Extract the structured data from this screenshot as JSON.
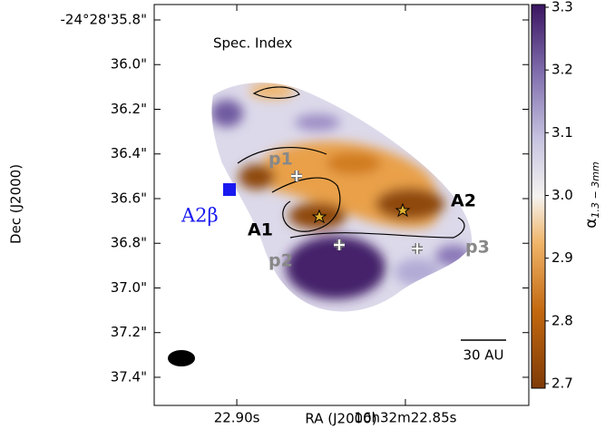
{
  "chart_data": {
    "type": "image",
    "title": "Spec. Index",
    "x_label": "RA (J2000)",
    "y_label": "Dec (J2000)",
    "xlim": [
      22.9245,
      22.8134
    ],
    "xticks": [
      {
        "value": 22.9,
        "label": "22.90s"
      },
      {
        "value": 22.85,
        "label": "16h32m22.85s"
      }
    ],
    "ylim": [
      35.731,
      37.526
    ],
    "yticks": [
      {
        "value": 35.8,
        "label": "-24°28'35.8\""
      },
      {
        "value": 36.0,
        "label": "36.0\""
      },
      {
        "value": 36.2,
        "label": "36.2\""
      },
      {
        "value": 36.4,
        "label": "36.4\""
      },
      {
        "value": 36.6,
        "label": "36.6\""
      },
      {
        "value": 36.8,
        "label": "36.8\""
      },
      {
        "value": 37.0,
        "label": "37.0\""
      },
      {
        "value": 37.2,
        "label": "37.2\""
      },
      {
        "value": 37.4,
        "label": "37.4\""
      }
    ],
    "colorbar": {
      "label": {
        "symbol": "α",
        "subscript": "1.3 − 3mm"
      },
      "clim": [
        2.7,
        3.3
      ],
      "ticks": [
        {
          "value": 2.7,
          "label": "2.7"
        },
        {
          "value": 2.8,
          "label": "2.8"
        },
        {
          "value": 2.9,
          "label": "2.9"
        },
        {
          "value": 3.0,
          "label": "3.0"
        },
        {
          "value": 3.1,
          "label": "3.1"
        },
        {
          "value": 3.2,
          "label": "3.2"
        },
        {
          "value": 3.3,
          "label": "3.3"
        }
      ]
    },
    "annotations": [
      "p1",
      "p2",
      "p3",
      "A1",
      "A2",
      "A2β",
      "30 AU"
    ]
  }
}
